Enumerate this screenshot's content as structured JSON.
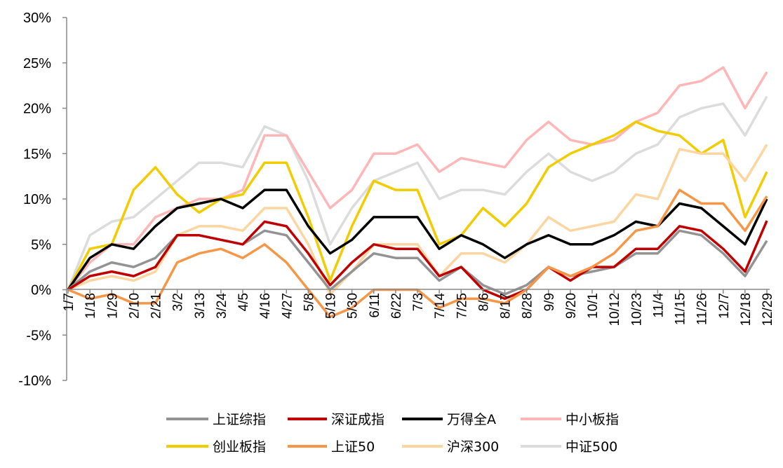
{
  "chart_data": {
    "type": "line",
    "title": "",
    "xlabel": "",
    "ylabel": "",
    "ylim": [
      -10,
      30
    ],
    "yticks": [
      "-10%",
      "-5%",
      "0%",
      "5%",
      "10%",
      "15%",
      "20%",
      "25%",
      "30%"
    ],
    "ytick_values": [
      -10,
      -5,
      0,
      5,
      10,
      15,
      20,
      25,
      30
    ],
    "grid": false,
    "legend_placement": "bottom",
    "x": [
      "1/7",
      "1/18",
      "1/29",
      "2/10",
      "2/21",
      "3/2",
      "3/13",
      "3/24",
      "4/5",
      "4/16",
      "4/27",
      "5/8",
      "5/19",
      "5/30",
      "6/11",
      "6/22",
      "7/3",
      "7/14",
      "7/25",
      "8/6",
      "8/17",
      "8/28",
      "9/9",
      "9/20",
      "10/1",
      "10/12",
      "10/23",
      "11/4",
      "11/15",
      "11/26",
      "12/7",
      "12/18",
      "12/29"
    ],
    "series": [
      {
        "name": "上证综指",
        "color": "#939393",
        "values": [
          0,
          2,
          3,
          2.5,
          3.5,
          6,
          6,
          5.5,
          5,
          6.5,
          6,
          3,
          0,
          2,
          4,
          3.5,
          3.5,
          1,
          2.5,
          0.5,
          -0.5,
          0.5,
          2.5,
          1.5,
          2,
          2.5,
          4,
          4,
          6.5,
          6,
          4,
          1.5,
          5.4
        ]
      },
      {
        "name": "深证成指",
        "color": "#c00000",
        "values": [
          0,
          1.5,
          2,
          1.5,
          2.5,
          6,
          6,
          5.5,
          5,
          7.5,
          7,
          4,
          0.5,
          3,
          5,
          4.5,
          4.5,
          1.5,
          2.5,
          0,
          -1,
          0,
          2.5,
          1,
          2.5,
          2.5,
          4.5,
          4.5,
          7,
          6.5,
          4.5,
          2,
          7.6
        ]
      },
      {
        "name": "万得全A",
        "color": "#000000",
        "values": [
          0,
          3.5,
          5,
          4.5,
          7,
          9,
          9.5,
          10,
          9,
          11,
          11,
          7,
          4,
          5.5,
          8,
          8,
          8,
          4.5,
          6,
          5,
          3.5,
          5,
          6,
          5,
          5,
          6,
          7.5,
          7,
          9.5,
          9,
          7,
          5,
          10
        ]
      },
      {
        "name": "中小板指",
        "color": "#ffb6b6",
        "values": [
          0,
          3,
          5,
          5,
          8,
          9,
          10,
          10,
          11,
          17,
          17,
          13,
          9,
          11,
          15,
          15,
          16,
          13,
          14.5,
          14,
          13.5,
          16.5,
          18.5,
          16.5,
          16,
          16.5,
          18.5,
          19.5,
          22.5,
          23,
          24.5,
          20,
          24
        ]
      },
      {
        "name": "创业板指",
        "color": "#f0cc00",
        "values": [
          0,
          4.5,
          5,
          11,
          13.5,
          10.5,
          8.5,
          10,
          10.5,
          14,
          14,
          8,
          1,
          7,
          12,
          11,
          11,
          5,
          6,
          9,
          7,
          9.5,
          13.5,
          15,
          16,
          17,
          18.5,
          17.5,
          17,
          15,
          16.5,
          8,
          13
        ]
      },
      {
        "name": "上证50",
        "color": "#f79646",
        "values": [
          0,
          -1,
          -0.5,
          -1.5,
          -1.5,
          3,
          4,
          4.5,
          3.5,
          5,
          3,
          0,
          -3,
          -2,
          0,
          0,
          0,
          -2,
          -1,
          -1,
          -1.5,
          0,
          2.5,
          1.5,
          2.5,
          4,
          6.5,
          7,
          11,
          9.5,
          9.5,
          6.5,
          10.3
        ]
      },
      {
        "name": "沪深300",
        "color": "#fcd5a0",
        "values": [
          0,
          1,
          1.5,
          1,
          2,
          6,
          7,
          7,
          6.5,
          9,
          9,
          5,
          -0.5,
          2,
          5,
          5,
          5,
          1.5,
          4,
          4,
          3,
          5,
          8,
          6.5,
          7,
          7.5,
          10.5,
          10,
          15.5,
          15,
          15,
          12,
          16
        ]
      },
      {
        "name": "中证500",
        "color": "#dcdcdc",
        "values": [
          0,
          6,
          7.5,
          8,
          10,
          12,
          14,
          14,
          13.5,
          18,
          17,
          12,
          5,
          9,
          12,
          13,
          14,
          10,
          11,
          11,
          10.5,
          13,
          15,
          13,
          12,
          13,
          15,
          16,
          19,
          20,
          20.5,
          17,
          21.3
        ]
      }
    ]
  }
}
